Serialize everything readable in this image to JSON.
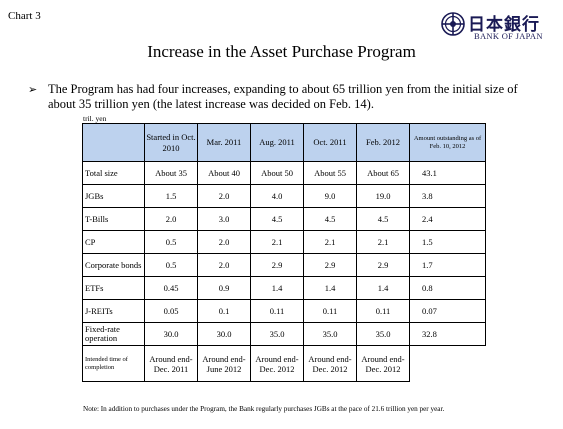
{
  "chart_label": "Chart 3",
  "logo": {
    "kanji": "日本銀行",
    "english": "BANK OF JAPAN"
  },
  "title": "Increase in the Asset Purchase Program",
  "bullet": "The Program has had four increases, expanding to about 65 trillion yen from the initial size of about 35 trillion yen (the latest increase was decided on Feb. 14).",
  "unit": "tril. yen",
  "table": {
    "headers": [
      "",
      "Started in Oct. 2010",
      "Mar. 2011",
      "Aug. 2011",
      "Oct. 2011",
      "Feb. 2012",
      "Amount outstanding as of Feb. 10, 2012"
    ],
    "rows": [
      [
        "Total size",
        "About 35",
        "About 40",
        "About 50",
        "About 55",
        "About 65",
        "43.1"
      ],
      [
        "JGBs",
        "1.5",
        "2.0",
        "4.0",
        "9.0",
        "19.0",
        "3.8"
      ],
      [
        "T-Bills",
        "2.0",
        "3.0",
        "4.5",
        "4.5",
        "4.5",
        "2.4"
      ],
      [
        "CP",
        "0.5",
        "2.0",
        "2.1",
        "2.1",
        "2.1",
        "1.5"
      ],
      [
        "Corporate bonds",
        "0.5",
        "2.0",
        "2.9",
        "2.9",
        "2.9",
        "1.7"
      ],
      [
        "ETFs",
        "0.45",
        "0.9",
        "1.4",
        "1.4",
        "1.4",
        "0.8"
      ],
      [
        "J-REITs",
        "0.05",
        "0.1",
        "0.11",
        "0.11",
        "0.11",
        "0.07"
      ],
      [
        "Fixed-rate operation",
        "30.0",
        "30.0",
        "35.0",
        "35.0",
        "35.0",
        "32.8"
      ]
    ],
    "timing_row": [
      "Intended time of completion",
      "Around end-Dec. 2011",
      "Around end-June 2012",
      "Around end-Dec. 2012",
      "Around end-Dec. 2012",
      "Around end-Dec. 2012"
    ]
  },
  "note": "Note: In addition to purchases under the Program, the Bank regularly purchases JGBs at the pace of 21.6 trillion yen per year.",
  "colors": {
    "header_bg": "#bdd2ee",
    "logo": "#1a1a55"
  }
}
